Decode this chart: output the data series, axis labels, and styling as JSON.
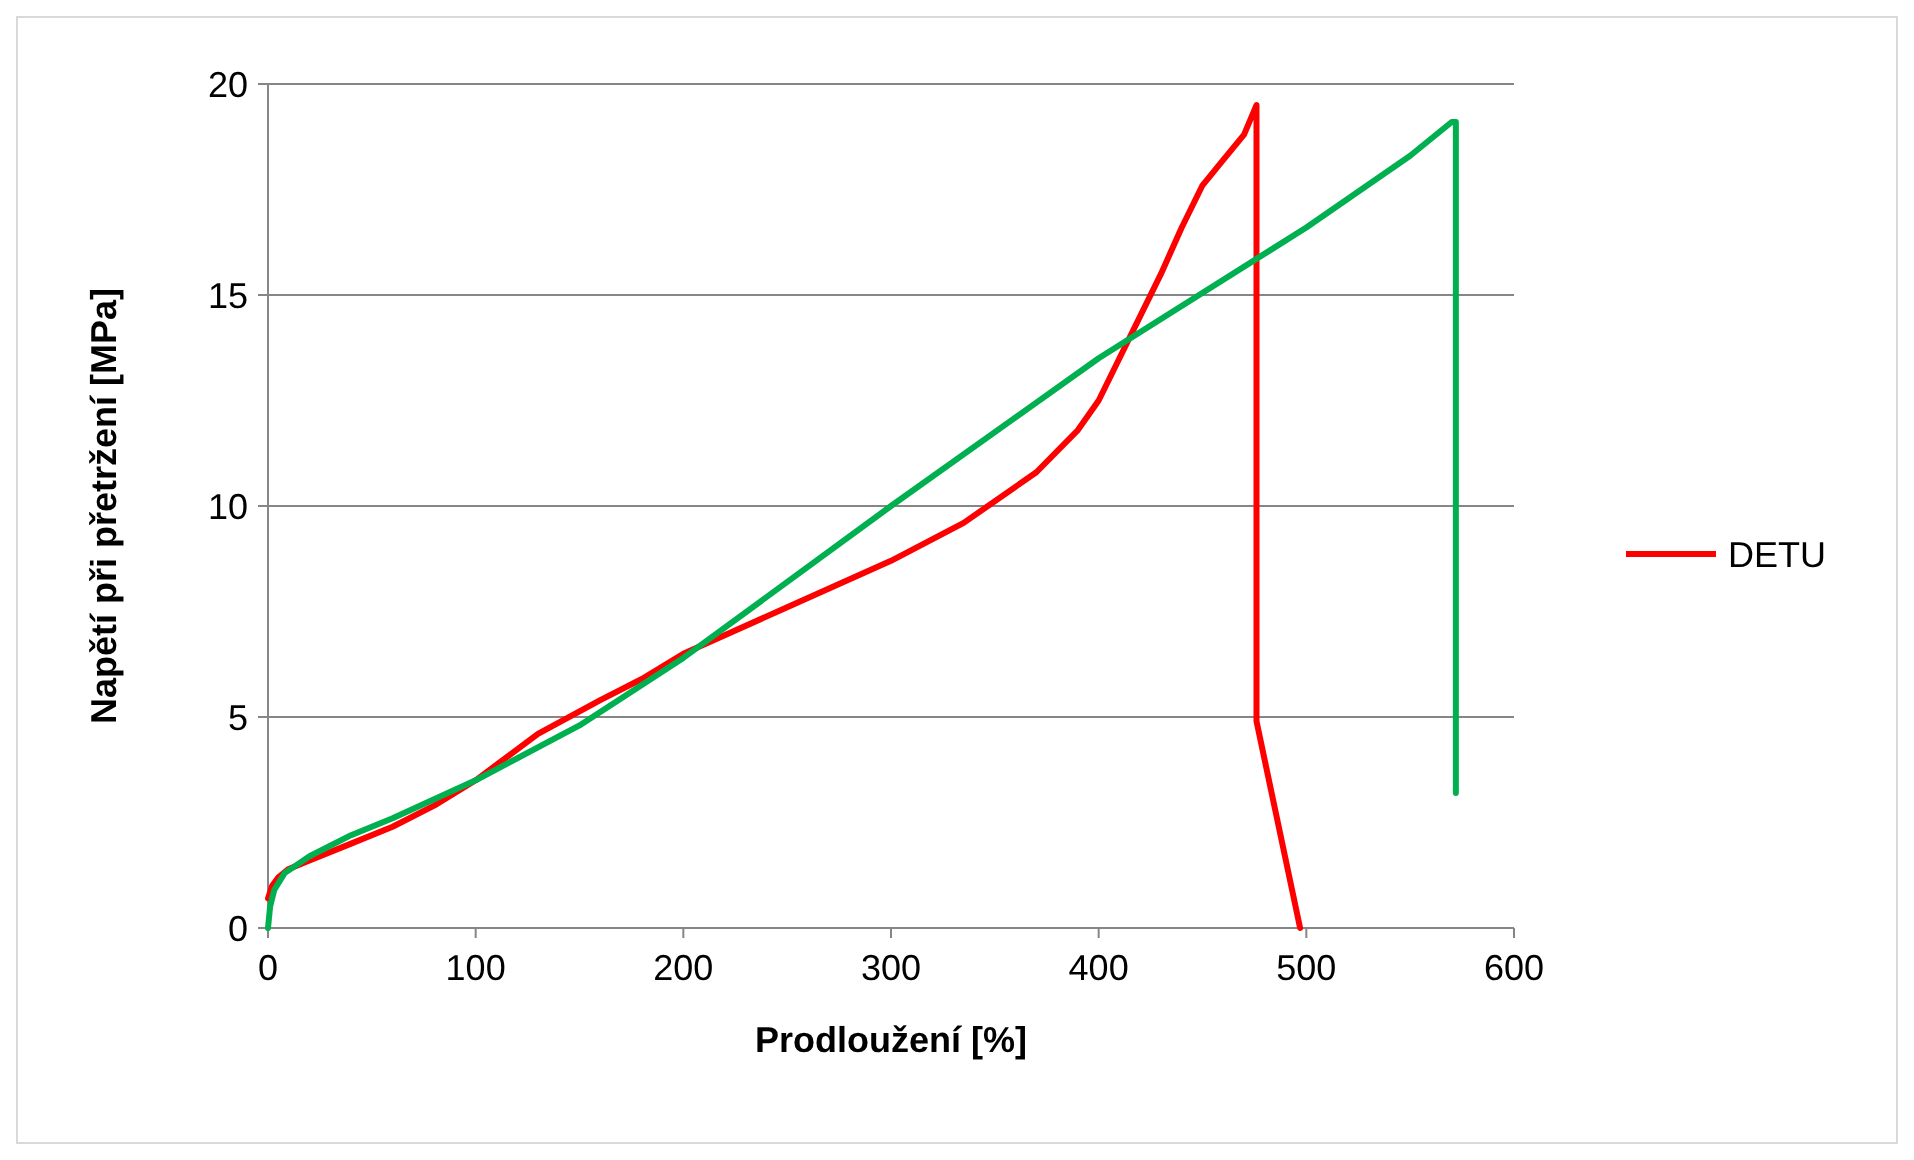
{
  "chart_data": {
    "type": "line",
    "xlabel": "Prodloužení [%]",
    "ylabel": "Napětí při přetržení [MPa]",
    "xlim": [
      0,
      600
    ],
    "xticks": [
      0,
      100,
      200,
      300,
      400,
      500,
      600
    ],
    "ylim": [
      0,
      20
    ],
    "yticks": [
      0,
      5,
      10,
      15,
      20
    ],
    "grid": "y",
    "legend": "right",
    "marker": "none",
    "line_style": "solid",
    "series": [
      {
        "name": "DETU",
        "color": "#ff0000",
        "x": [
          0,
          2,
          5,
          10,
          20,
          40,
          60,
          80,
          100,
          130,
          160,
          180,
          200,
          250,
          300,
          335,
          370,
          390,
          400,
          410,
          420,
          430,
          440,
          450,
          460,
          470,
          476,
          476,
          497
        ],
        "values": [
          0.7,
          1.0,
          1.2,
          1.4,
          1.6,
          2.0,
          2.4,
          2.9,
          3.5,
          4.6,
          5.4,
          5.9,
          6.5,
          7.6,
          8.7,
          9.6,
          10.8,
          11.8,
          12.5,
          13.5,
          14.5,
          15.5,
          16.6,
          17.6,
          18.2,
          18.8,
          19.5,
          4.9,
          0
        ]
      },
      {
        "color": "#00b050",
        "x": [
          0,
          1,
          3,
          8,
          20,
          40,
          60,
          100,
          150,
          200,
          300,
          400,
          500,
          550,
          570,
          572,
          572
        ],
        "values": [
          0,
          0.5,
          0.9,
          1.3,
          1.7,
          2.2,
          2.6,
          3.5,
          4.8,
          6.4,
          10.0,
          13.5,
          16.6,
          18.3,
          19.1,
          19.1,
          3.2
        ]
      }
    ]
  }
}
